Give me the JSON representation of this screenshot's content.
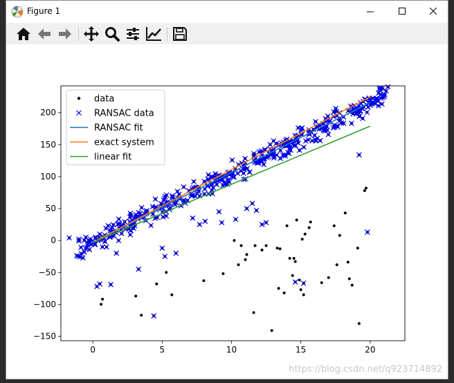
{
  "window": {
    "title": "Figure 1"
  },
  "toolbar": {
    "buttons": [
      {
        "name": "home-icon"
      },
      {
        "name": "back-icon"
      },
      {
        "name": "forward-icon"
      },
      {
        "name": "pan-icon"
      },
      {
        "name": "zoom-icon"
      },
      {
        "name": "subplots-icon"
      },
      {
        "name": "edit-curve-icon"
      },
      {
        "name": "save-icon"
      }
    ]
  },
  "watermark": "https://blog.csdn.net/q923714892",
  "chart_data": {
    "type": "scatter",
    "xlim": [
      -2.3,
      22.5
    ],
    "ylim": [
      -157,
      242
    ],
    "xticks": [
      0,
      5,
      10,
      15,
      20
    ],
    "yticks": [
      -150,
      -100,
      -50,
      0,
      50,
      100,
      150,
      200
    ],
    "legend": {
      "position": "top-left",
      "entries": [
        {
          "label": "data",
          "marker": "dot",
          "color": "#000000"
        },
        {
          "label": "RANSAC data",
          "marker": "x",
          "color": "#0000ff"
        },
        {
          "label": "RANSAC fit",
          "marker": "line",
          "color": "#1f77b4"
        },
        {
          "label": "exact system",
          "marker": "line",
          "color": "#ff7f0e"
        },
        {
          "label": "linear fit",
          "marker": "line",
          "color": "#2ca02c"
        }
      ]
    },
    "lines": [
      {
        "name": "RANSAC fit",
        "color": "#1f77b4",
        "x": [
          0,
          20
        ],
        "y": [
          -3,
          216
        ]
      },
      {
        "name": "exact system",
        "color": "#ff7f0e",
        "x": [
          0,
          20
        ],
        "y": [
          -3,
          225
        ]
      },
      {
        "name": "linear fit",
        "color": "#2ca02c",
        "x": [
          0,
          20
        ],
        "y": [
          -3,
          179
        ]
      }
    ],
    "outliers": [
      [
        0.6,
        -100
      ],
      [
        0.7,
        -92
      ],
      [
        3.1,
        -87
      ],
      [
        3.5,
        -117
      ],
      [
        4.6,
        -68
      ],
      [
        5.3,
        -50
      ],
      [
        5.7,
        -85
      ],
      [
        8.0,
        -63
      ],
      [
        9.4,
        -52
      ],
      [
        10.2,
        0
      ],
      [
        10.5,
        -38
      ],
      [
        10.7,
        -8
      ],
      [
        11.0,
        -30
      ],
      [
        11.1,
        -22
      ],
      [
        11.6,
        -113
      ],
      [
        11.7,
        -8
      ],
      [
        12.2,
        -15
      ],
      [
        12.5,
        -8
      ],
      [
        12.9,
        -141
      ],
      [
        13.3,
        -12
      ],
      [
        13.4,
        -75
      ],
      [
        13.5,
        -13
      ],
      [
        13.8,
        -82
      ],
      [
        14.0,
        23
      ],
      [
        14.2,
        -28
      ],
      [
        14.4,
        -55
      ],
      [
        14.5,
        -28
      ],
      [
        14.6,
        -33
      ],
      [
        14.7,
        32
      ],
      [
        14.9,
        -62
      ],
      [
        15.0,
        -77
      ],
      [
        15.1,
        2
      ],
      [
        15.2,
        -85
      ],
      [
        15.3,
        10
      ],
      [
        15.6,
        20
      ],
      [
        15.7,
        29
      ],
      [
        16.5,
        -66
      ],
      [
        17.0,
        -58
      ],
      [
        17.4,
        23
      ],
      [
        17.6,
        -38
      ],
      [
        17.8,
        8
      ],
      [
        18.2,
        43
      ],
      [
        18.4,
        -34
      ],
      [
        18.5,
        -60
      ],
      [
        18.7,
        -70
      ],
      [
        19.1,
        -12
      ],
      [
        19.2,
        -130
      ],
      [
        19.6,
        78
      ],
      [
        19.7,
        82
      ]
    ],
    "ransac_outliers": [
      [
        -1.7,
        4
      ],
      [
        -1.0,
        2
      ],
      [
        -0.5,
        5
      ],
      [
        -0.3,
        0
      ],
      [
        0.3,
        -72
      ],
      [
        0.5,
        -68
      ],
      [
        1.3,
        -69
      ],
      [
        1.7,
        -20
      ],
      [
        3.3,
        -45
      ],
      [
        4.4,
        -118
      ],
      [
        5.2,
        -25
      ],
      [
        5.0,
        -12
      ],
      [
        6.0,
        -20
      ],
      [
        7.2,
        35
      ],
      [
        7.7,
        25
      ],
      [
        8.1,
        30
      ],
      [
        9.1,
        45
      ],
      [
        9.3,
        28
      ],
      [
        10.3,
        33
      ],
      [
        11.1,
        50
      ],
      [
        11.5,
        58
      ],
      [
        11.8,
        47
      ],
      [
        12.2,
        25
      ],
      [
        12.5,
        28
      ],
      [
        14.6,
        -65
      ],
      [
        15.2,
        -67
      ],
      [
        19.2,
        134
      ],
      [
        19.8,
        13
      ]
    ]
  }
}
